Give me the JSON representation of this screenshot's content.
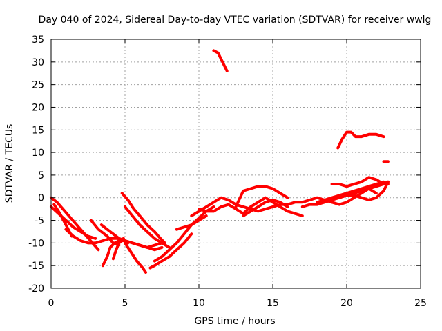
{
  "chart_data": {
    "type": "scatter",
    "title": "Day 040 of 2024, Sidereal Day-to-day VTEC variation (SDTVAR) for receiver wwlg",
    "xlabel": "GPS time / hours",
    "ylabel": "SDTVAR / TECUs",
    "xlim": [
      0,
      25
    ],
    "ylim": [
      -20,
      35
    ],
    "xticks": [
      0,
      5,
      10,
      15,
      20,
      25
    ],
    "yticks": [
      -20,
      -15,
      -10,
      -5,
      0,
      5,
      10,
      15,
      20,
      25,
      30,
      35
    ],
    "grid": true,
    "color": "#ff0000",
    "series": [
      {
        "x": [
          0.0,
          0.4,
          0.8,
          1.2,
          1.6,
          2.0,
          2.4,
          2.8,
          3.2
        ],
        "y": [
          0.0,
          -1.0,
          -2.5,
          -4.0,
          -5.5,
          -7.0,
          -8.5,
          -10.0,
          -11.5
        ]
      },
      {
        "x": [
          0.0,
          0.5,
          1.0,
          1.5,
          2.0,
          2.5,
          3.0
        ],
        "y": [
          -2.0,
          -3.5,
          -5.0,
          -6.5,
          -7.5,
          -8.5,
          -9.0
        ]
      },
      {
        "x": [
          0.2,
          0.6,
          1.0,
          1.4
        ],
        "y": [
          -1.5,
          -3.5,
          -6.0,
          -8.5
        ]
      },
      {
        "x": [
          1.0,
          1.5,
          2.0,
          2.5,
          3.0,
          3.5,
          4.0,
          4.5,
          5.0,
          5.5,
          6.0,
          6.5,
          7.0,
          7.5
        ],
        "y": [
          -7.0,
          -8.5,
          -9.5,
          -10.0,
          -10.0,
          -9.5,
          -9.0,
          -9.0,
          -9.5,
          -10.0,
          -10.5,
          -11.0,
          -10.5,
          -10.0
        ]
      },
      {
        "x": [
          2.7,
          3.2,
          3.8,
          4.2,
          4.6
        ],
        "y": [
          -5.0,
          -7.0,
          -8.5,
          -10.0,
          -10.5
        ]
      },
      {
        "x": [
          3.4,
          3.8,
          4.2,
          4.6,
          5.0,
          5.5,
          6.0,
          6.5,
          7.0,
          7.5
        ],
        "y": [
          -6.0,
          -7.0,
          -8.0,
          -9.0,
          -9.5,
          -10.0,
          -10.5,
          -11.0,
          -11.5,
          -11.0
        ]
      },
      {
        "x": [
          3.5,
          3.8,
          4.0,
          4.3,
          4.6,
          4.9
        ],
        "y": [
          -15.0,
          -13.0,
          -11.0,
          -10.0,
          -9.5,
          -9.0
        ]
      },
      {
        "x": [
          4.2,
          4.4,
          4.6,
          4.8,
          5.0,
          5.2
        ],
        "y": [
          -13.5,
          -11.5,
          -10.0,
          -9.5,
          -9.5,
          -10.0
        ]
      },
      {
        "x": [
          5.0,
          5.4,
          5.8,
          6.2,
          6.4
        ],
        "y": [
          -10.0,
          -12.0,
          -14.0,
          -15.5,
          -16.5
        ]
      },
      {
        "x": [
          4.8,
          5.2,
          5.6,
          6.0,
          6.5,
          7.0,
          7.4,
          7.7
        ],
        "y": [
          1.0,
          -0.5,
          -2.5,
          -4.0,
          -6.0,
          -7.5,
          -9.0,
          -10.0
        ]
      },
      {
        "x": [
          5.0,
          5.5,
          6.0,
          6.5,
          7.0,
          7.5,
          8.0
        ],
        "y": [
          -2.0,
          -4.0,
          -6.0,
          -7.5,
          -9.0,
          -10.0,
          -11.0
        ]
      },
      {
        "x": [
          6.7,
          7.0,
          7.5,
          8.0,
          8.5,
          9.0,
          9.5
        ],
        "y": [
          -15.5,
          -15.0,
          -14.0,
          -13.0,
          -11.5,
          -10.0,
          -8.0
        ]
      },
      {
        "x": [
          7.0,
          7.5,
          8.0,
          8.5,
          9.0,
          9.5,
          10.0,
          10.5,
          11.0
        ],
        "y": [
          -14.0,
          -13.0,
          -11.5,
          -10.0,
          -8.0,
          -6.0,
          -4.5,
          -3.0,
          -2.0
        ]
      },
      {
        "x": [
          8.5,
          9.0,
          9.5,
          10.0,
          10.5
        ],
        "y": [
          -7.0,
          -6.5,
          -6.0,
          -5.0,
          -4.0
        ]
      },
      {
        "x": [
          9.5,
          10.0,
          10.5,
          11.0,
          11.5,
          12.0,
          12.5,
          13.0,
          13.5,
          14.0,
          14.5,
          15.0,
          15.5,
          16.0,
          16.5,
          17.0,
          17.5,
          18.0,
          18.5,
          19.0
        ],
        "y": [
          -4.0,
          -3.0,
          -2.0,
          -1.0,
          0.0,
          -0.5,
          -1.5,
          -2.0,
          -2.5,
          -3.0,
          -2.5,
          -2.0,
          -1.5,
          -1.5,
          -1.0,
          -1.0,
          -0.5,
          0.0,
          -0.5,
          -1.0
        ]
      },
      {
        "x": [
          10.0,
          10.5,
          11.0,
          11.5,
          12.0,
          12.5,
          13.0,
          13.5,
          14.0,
          14.5,
          15.0,
          15.5,
          16.0,
          16.5,
          17.0
        ],
        "y": [
          -2.5,
          -3.0,
          -3.0,
          -2.0,
          -1.5,
          -2.5,
          -3.5,
          -2.0,
          -1.0,
          0.0,
          -1.0,
          -2.0,
          -3.0,
          -3.5,
          -4.0
        ]
      },
      {
        "x": [
          12.5,
          13.0,
          13.5,
          14.0,
          14.5,
          15.0,
          15.5,
          16.0
        ],
        "y": [
          -2.0,
          1.5,
          2.0,
          2.5,
          2.5,
          2.0,
          1.0,
          0.0
        ]
      },
      {
        "x": [
          13.0,
          13.5,
          14.0,
          14.5,
          15.0,
          15.5,
          16.0
        ],
        "y": [
          -4.0,
          -3.0,
          -2.0,
          -1.0,
          -0.5,
          -1.0,
          -2.0
        ]
      },
      {
        "x": [
          11.0,
          11.3,
          11.6,
          11.9
        ],
        "y": [
          32.5,
          32.0,
          30.0,
          28.0
        ]
      },
      {
        "x": [
          19.4,
          19.7,
          20.0,
          20.3,
          20.6,
          21.0,
          21.5,
          22.0,
          22.5
        ],
        "y": [
          11.0,
          13.0,
          14.5,
          14.5,
          13.5,
          13.5,
          14.0,
          14.0,
          13.5
        ]
      },
      {
        "x": [
          22.5,
          22.8
        ],
        "y": [
          8.0,
          8.0
        ]
      },
      {
        "x": [
          17.0,
          17.5,
          18.0,
          18.5,
          19.0,
          19.5,
          20.0,
          20.5,
          21.0,
          21.5,
          22.0,
          22.5,
          22.8
        ],
        "y": [
          -2.0,
          -1.5,
          -1.5,
          -1.0,
          -0.5,
          0.0,
          0.5,
          1.0,
          1.5,
          2.0,
          2.5,
          3.0,
          3.5
        ]
      },
      {
        "x": [
          18.0,
          18.5,
          19.0,
          19.5,
          20.0,
          20.5,
          21.0,
          21.5,
          22.0,
          22.5,
          22.8
        ],
        "y": [
          -1.0,
          -0.5,
          0.0,
          0.5,
          1.0,
          1.5,
          2.0,
          2.5,
          3.0,
          3.5,
          3.0
        ]
      },
      {
        "x": [
          19.0,
          19.5,
          20.0,
          20.5,
          21.0,
          21.5,
          22.0
        ],
        "y": [
          -1.0,
          -1.5,
          -1.0,
          0.0,
          1.0,
          2.0,
          1.0
        ]
      },
      {
        "x": [
          19.0,
          19.5,
          20.0,
          20.5,
          21.0,
          21.5,
          22.0,
          22.5
        ],
        "y": [
          3.0,
          3.0,
          2.5,
          3.0,
          3.5,
          4.5,
          4.0,
          3.0
        ]
      },
      {
        "x": [
          19.5,
          20.0,
          20.5,
          21.0,
          21.5,
          22.0,
          22.5,
          22.8
        ],
        "y": [
          0.0,
          0.5,
          0.5,
          0.0,
          -0.5,
          0.0,
          1.5,
          3.5
        ]
      }
    ]
  }
}
